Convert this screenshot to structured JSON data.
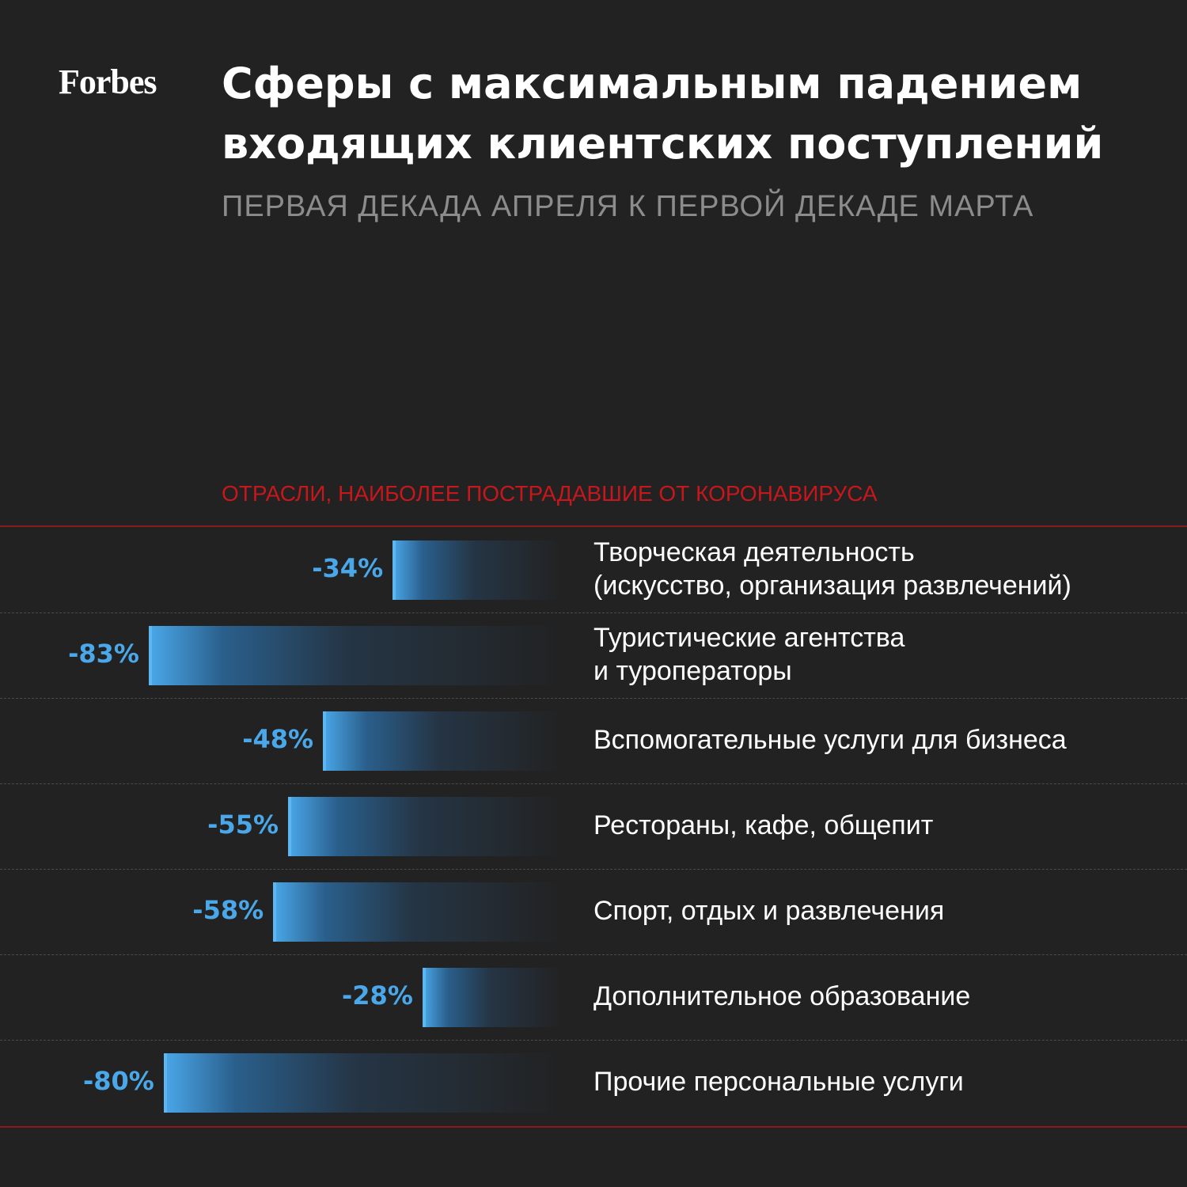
{
  "brand": {
    "logo_text": "Forbes"
  },
  "header": {
    "title_line1": "Сферы с максимальным падением",
    "title_line2": "входящих клиентских поступлений",
    "subtitle": "ПЕРВАЯ ДЕКАДА АПРЕЛЯ К ПЕРВОЙ ДЕКАДЕ МАРТА"
  },
  "section_label": "ОТРАСЛИ, НАИБОЛЕЕ ПОСТРАДАВШИЕ ОТ КОРОНАВИРУСА",
  "colors": {
    "background": "#222222",
    "bar": "#4aa8ea",
    "accent_red": "#c6171d",
    "label_value": "#4aa8ea"
  },
  "chart_data": {
    "type": "bar",
    "orientation": "horizontal",
    "categories": [
      [
        "Творческая деятельность",
        "(искусство, организация развлечений)"
      ],
      [
        "Туристические агентства",
        "и туроператоры"
      ],
      [
        "Вспомогательные услуги для бизнеса"
      ],
      [
        "Рестораны, кафе, общепит"
      ],
      [
        "Спорт, отдых и развлечения"
      ],
      [
        "Дополнительное образование"
      ],
      [
        "Прочие персональные услуги"
      ]
    ],
    "values": [
      -34,
      -83,
      -48,
      -55,
      -58,
      -28,
      -80
    ],
    "value_labels": [
      "-34%",
      "-83%",
      "-48%",
      "-55%",
      "-58%",
      "-28%",
      "-80%"
    ],
    "unit": "%",
    "grid": false,
    "legend": "none"
  }
}
